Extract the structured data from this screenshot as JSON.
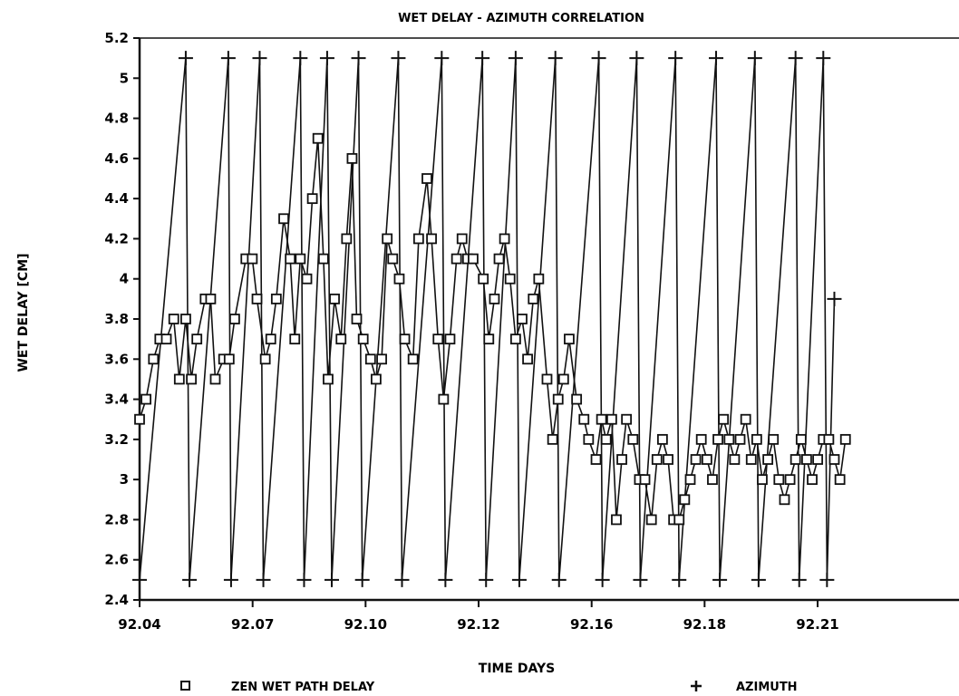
{
  "chart_data": {
    "type": "line",
    "title": "WET DELAY - AZIMUTH CORRELATION",
    "xlabel": "TIME DAYS",
    "ylabel": "WET DELAY [CM]",
    "ylim": [
      2.4,
      5.2
    ],
    "yticks": [
      2.4,
      2.6,
      2.8,
      3,
      3.2,
      3.4,
      3.6,
      3.8,
      4,
      4.2,
      4.4,
      4.6,
      4.8,
      5,
      5.2
    ],
    "xlim": [
      0,
      1
    ],
    "xticks": [
      {
        "pos": 0.0,
        "label": "92.04"
      },
      {
        "pos": 0.1474,
        "label": "92.07"
      },
      {
        "pos": 0.2947,
        "label": "92.10"
      },
      {
        "pos": 0.4421,
        "label": "92.12"
      },
      {
        "pos": 0.5895,
        "label": "92.16"
      },
      {
        "pos": 0.7368,
        "label": "92.18"
      },
      {
        "pos": 0.8842,
        "label": "92.21"
      }
    ],
    "grid": false,
    "legend_position": "bottom",
    "series": [
      {
        "name": "ZEN WET PATH DELAY",
        "marker": "square",
        "x": [
          0.0,
          0.0084,
          0.0181,
          0.0264,
          0.0349,
          0.0446,
          0.0518,
          0.0602,
          0.0675,
          0.0747,
          0.0855,
          0.0927,
          0.0987,
          0.1096,
          0.1168,
          0.124,
          0.1386,
          0.147,
          0.1531,
          0.1639,
          0.1711,
          0.1783,
          0.188,
          0.1964,
          0.2024,
          0.2096,
          0.2181,
          0.2253,
          0.2325,
          0.2398,
          0.2458,
          0.2542,
          0.2627,
          0.2699,
          0.2771,
          0.2831,
          0.2916,
          0.3012,
          0.3084,
          0.3157,
          0.3229,
          0.3301,
          0.3386,
          0.3458,
          0.3566,
          0.3639,
          0.3747,
          0.3807,
          0.3892,
          0.3964,
          0.4048,
          0.4133,
          0.4205,
          0.4277,
          0.4349,
          0.4482,
          0.4554,
          0.4627,
          0.4687,
          0.4759,
          0.4831,
          0.4904,
          0.4988,
          0.506,
          0.5133,
          0.5205,
          0.5313,
          0.5386,
          0.5458,
          0.553,
          0.5602,
          0.5699,
          0.5795,
          0.5855,
          0.5952,
          0.6024,
          0.6084,
          0.6157,
          0.6217,
          0.6289,
          0.6349,
          0.6434,
          0.6518,
          0.659,
          0.6675,
          0.6747,
          0.6819,
          0.6892,
          0.6964,
          0.7036,
          0.7108,
          0.7181,
          0.7253,
          0.7325,
          0.7398,
          0.747,
          0.7542,
          0.7614,
          0.7687,
          0.7759,
          0.7831,
          0.7904,
          0.7976,
          0.8048,
          0.812,
          0.8193,
          0.8265,
          0.8337,
          0.841,
          0.8482,
          0.8554,
          0.8627,
          0.8699,
          0.8771,
          0.8843,
          0.8916,
          0.8988,
          0.906,
          0.9133,
          0.9205
        ],
        "values": [
          3.3,
          3.4,
          3.6,
          3.7,
          3.7,
          3.8,
          3.5,
          3.8,
          3.5,
          3.7,
          3.9,
          3.9,
          3.5,
          3.6,
          3.6,
          3.8,
          4.1,
          4.1,
          3.9,
          3.6,
          3.7,
          3.9,
          4.3,
          4.1,
          3.7,
          4.1,
          4.0,
          4.4,
          4.7,
          4.1,
          3.5,
          3.9,
          3.7,
          4.2,
          4.6,
          3.8,
          3.7,
          3.6,
          3.5,
          3.6,
          4.2,
          4.1,
          4.0,
          3.7,
          3.6,
          4.2,
          4.5,
          4.2,
          3.7,
          3.4,
          3.7,
          4.1,
          4.2,
          4.1,
          4.1,
          4.0,
          3.7,
          3.9,
          4.1,
          4.2,
          4.0,
          3.7,
          3.8,
          3.6,
          3.9,
          4.0,
          3.5,
          3.2,
          3.4,
          3.5,
          3.7,
          3.4,
          3.3,
          3.2,
          3.1,
          3.3,
          3.2,
          3.3,
          2.8,
          3.1,
          3.3,
          3.2,
          3.0,
          3.0,
          2.8,
          3.1,
          3.2,
          3.1,
          2.8,
          2.8,
          2.9,
          3.0,
          3.1,
          3.2,
          3.1,
          3.0,
          3.2,
          3.3,
          3.2,
          3.1,
          3.2,
          3.3,
          3.1,
          3.2,
          3.0,
          3.1,
          3.2,
          3.0,
          2.9,
          3.0,
          3.1,
          3.2,
          3.1,
          3.0,
          3.1,
          3.2,
          3.2,
          3.1,
          3.0,
          3.2
        ]
      },
      {
        "name": "AZIMUTH",
        "marker": "plus",
        "x": [
          0.0,
          0.0602,
          0.0651,
          0.1157,
          0.1193,
          0.1566,
          0.1614,
          0.2096,
          0.2145,
          0.2446,
          0.2506,
          0.2855,
          0.2904,
          0.3374,
          0.3422,
          0.394,
          0.3988,
          0.447,
          0.4518,
          0.4904,
          0.4952,
          0.5422,
          0.547,
          0.5988,
          0.6036,
          0.6482,
          0.653,
          0.6988,
          0.7036,
          0.7518,
          0.7566,
          0.8024,
          0.8072,
          0.8554,
          0.8602,
          0.8916,
          0.8964,
          0.906
        ],
        "values": [
          2.5,
          5.1,
          2.5,
          5.1,
          2.5,
          5.1,
          2.5,
          5.1,
          2.5,
          5.1,
          2.5,
          5.1,
          2.5,
          5.1,
          2.5,
          5.1,
          2.5,
          5.1,
          2.5,
          5.1,
          2.5,
          5.1,
          2.5,
          5.1,
          2.5,
          5.1,
          2.5,
          5.1,
          2.5,
          5.1,
          2.5,
          5.1,
          2.5,
          5.1,
          2.5,
          5.1,
          2.5,
          3.9
        ]
      }
    ]
  }
}
